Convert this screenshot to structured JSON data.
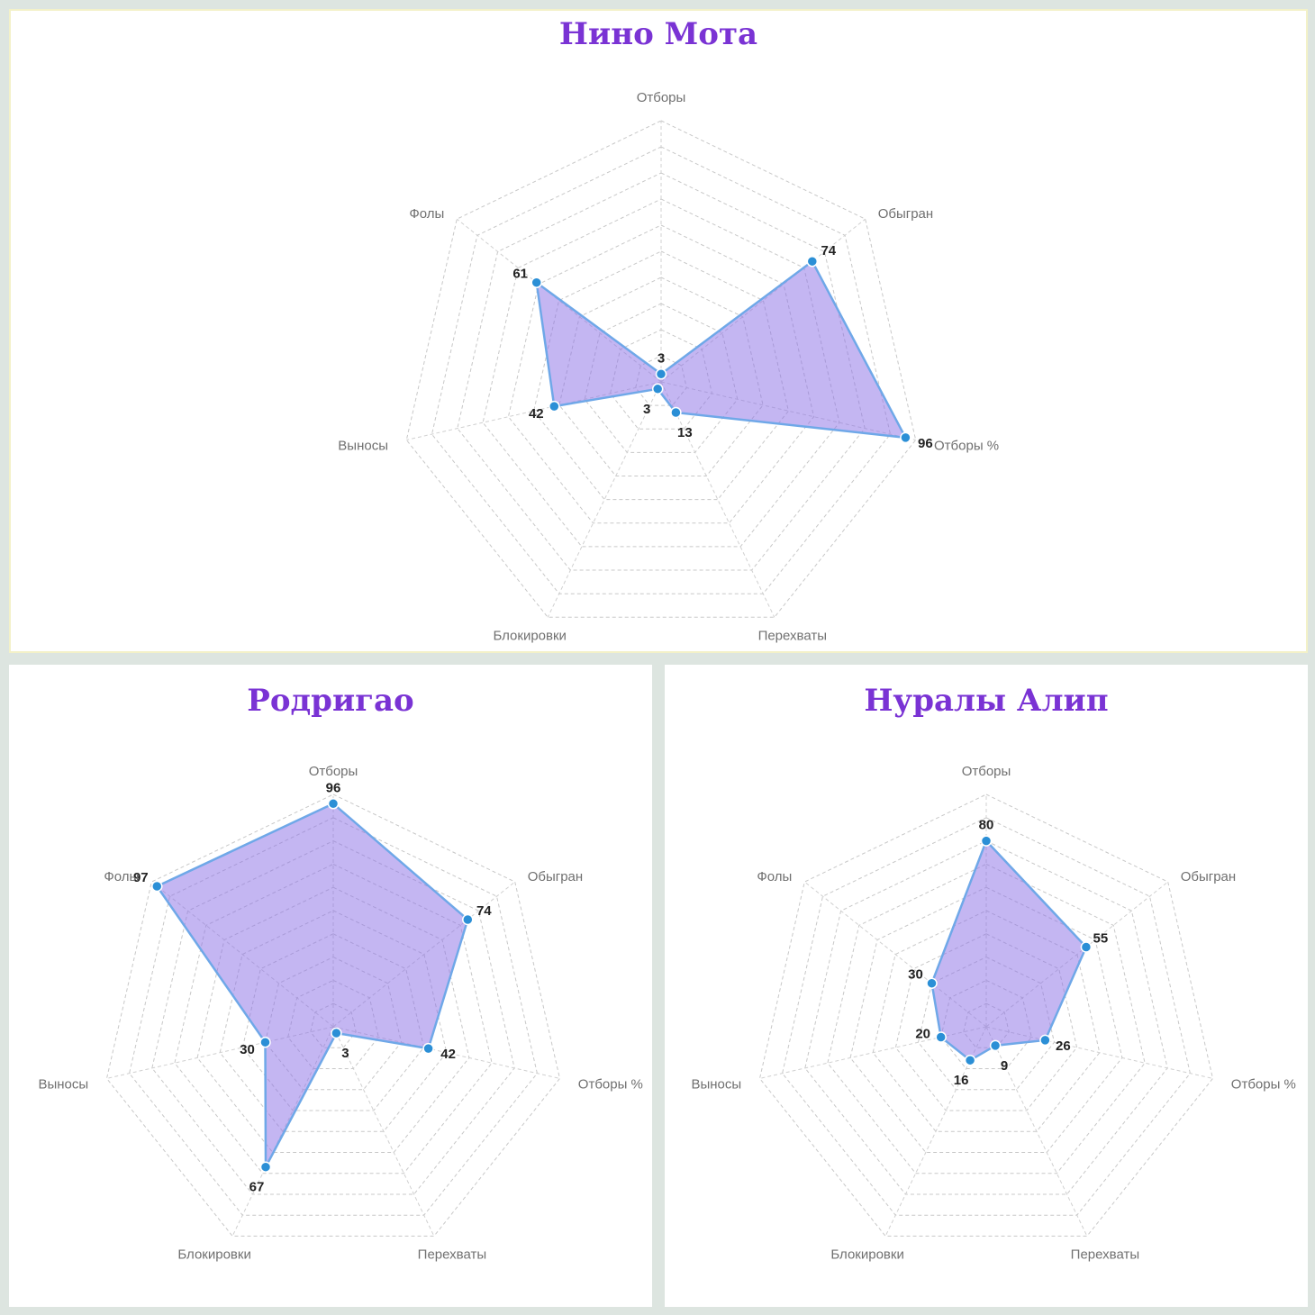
{
  "chart_data": [
    {
      "type": "radar",
      "title": "Нино Мота",
      "axes": [
        "Отборы",
        "Обыгран",
        "Отборы %",
        "Перехваты",
        "Блокировки",
        "Выносы",
        "Фолы"
      ],
      "series": [
        {
          "values": [
            3,
            74,
            96,
            13,
            3,
            42,
            61
          ]
        }
      ],
      "range": [
        0,
        100
      ],
      "grid_levels": 10,
      "color": "#8a6ee6",
      "stroke": "#6fa8e8",
      "point_color": "#2b8fd6"
    },
    {
      "type": "radar",
      "title": "Родригао",
      "axes": [
        "Отборы",
        "Обыгран",
        "Отборы %",
        "Перехваты",
        "Блокировки",
        "Выносы",
        "Фолы"
      ],
      "series": [
        {
          "values": [
            96,
            74,
            42,
            3,
            67,
            30,
            97
          ]
        }
      ],
      "range": [
        0,
        100
      ],
      "grid_levels": 10,
      "color": "#8a6ee6",
      "stroke": "#6fa8e8",
      "point_color": "#2b8fd6"
    },
    {
      "type": "radar",
      "title": "Нуралы Алип",
      "axes": [
        "Отборы",
        "Обыгран",
        "Отборы %",
        "Перехваты",
        "Блокировки",
        "Выносы",
        "Фолы"
      ],
      "series": [
        {
          "values": [
            80,
            55,
            26,
            9,
            16,
            20,
            30
          ]
        }
      ],
      "range": [
        0,
        100
      ],
      "grid_levels": 10,
      "color": "#8a6ee6",
      "stroke": "#6fa8e8",
      "point_color": "#2b8fd6"
    }
  ]
}
